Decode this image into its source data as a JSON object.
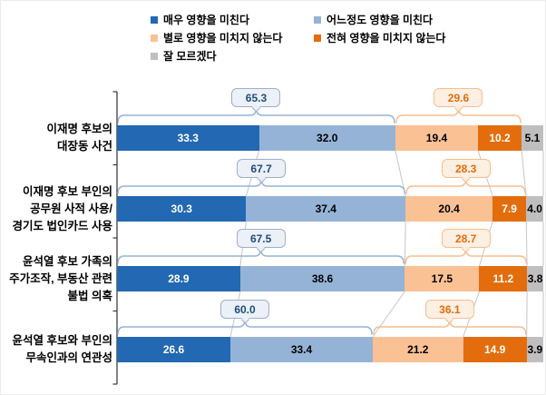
{
  "chart_data": {
    "type": "bar",
    "variant": "horizontal-stacked-100",
    "title": "",
    "xlabel": "",
    "ylabel": "",
    "xlim": [
      0,
      100
    ],
    "unit": "%",
    "legend_position": "top",
    "grid": false,
    "legend": [
      {
        "label": "매우 영향을 미친다",
        "color": "#2268B2",
        "value_color": "#FFFFFF"
      },
      {
        "label": "어느정도 영향을 미친다",
        "color": "#95B3D7",
        "value_color": "#000000"
      },
      {
        "label": "별로 영향을 미치지 않는다",
        "color": "#FAC195",
        "value_color": "#000000"
      },
      {
        "label": "전혀 영향을 미치지 않는다",
        "color": "#E36D0C",
        "value_color": "#FFFFFF"
      },
      {
        "label": "잘 모르겠다",
        "color": "#BFBFBF",
        "value_color": "#000000"
      }
    ],
    "rows": [
      {
        "category_lines": [
          "이재명 후보의",
          "대장동 사건"
        ],
        "values": [
          "33.3",
          "32.0",
          "19.4",
          "10.2",
          "5.1"
        ],
        "positive_sum": "65.3",
        "negative_sum": "29.6"
      },
      {
        "category_lines": [
          "이재명 후보 부인의",
          "공무원 사적 사용/",
          "경기도 법인카드 사용"
        ],
        "values": [
          "30.3",
          "37.4",
          "20.4",
          "7.9",
          "4.0"
        ],
        "positive_sum": "67.7",
        "negative_sum": "28.3"
      },
      {
        "category_lines": [
          "윤석열 후보 가족의",
          "주가조작, 부동산 관련",
          "불법 의혹"
        ],
        "values": [
          "28.9",
          "38.6",
          "17.5",
          "11.2",
          "3.8"
        ],
        "positive_sum": "67.5",
        "negative_sum": "28.7"
      },
      {
        "category_lines": [
          "윤석열 후보와 부인의",
          "무속인과의 연관성"
        ],
        "values": [
          "26.6",
          "33.4",
          "21.2",
          "14.9",
          "3.9"
        ],
        "positive_sum": "60.0",
        "negative_sum": "36.1"
      }
    ],
    "styles": {
      "positive_callout": {
        "fill": "#ECF0F7",
        "border": "#9FAECB",
        "text": "#1F4E79",
        "brace": "#95B3D7"
      },
      "negative_callout": {
        "fill": "#FDEFE2",
        "border": "#F6BE8E",
        "text": "#E36C0A",
        "brace": "#F9BE8F"
      },
      "series_line": "#C5C5C5",
      "axis": "#3F3F3F"
    }
  }
}
